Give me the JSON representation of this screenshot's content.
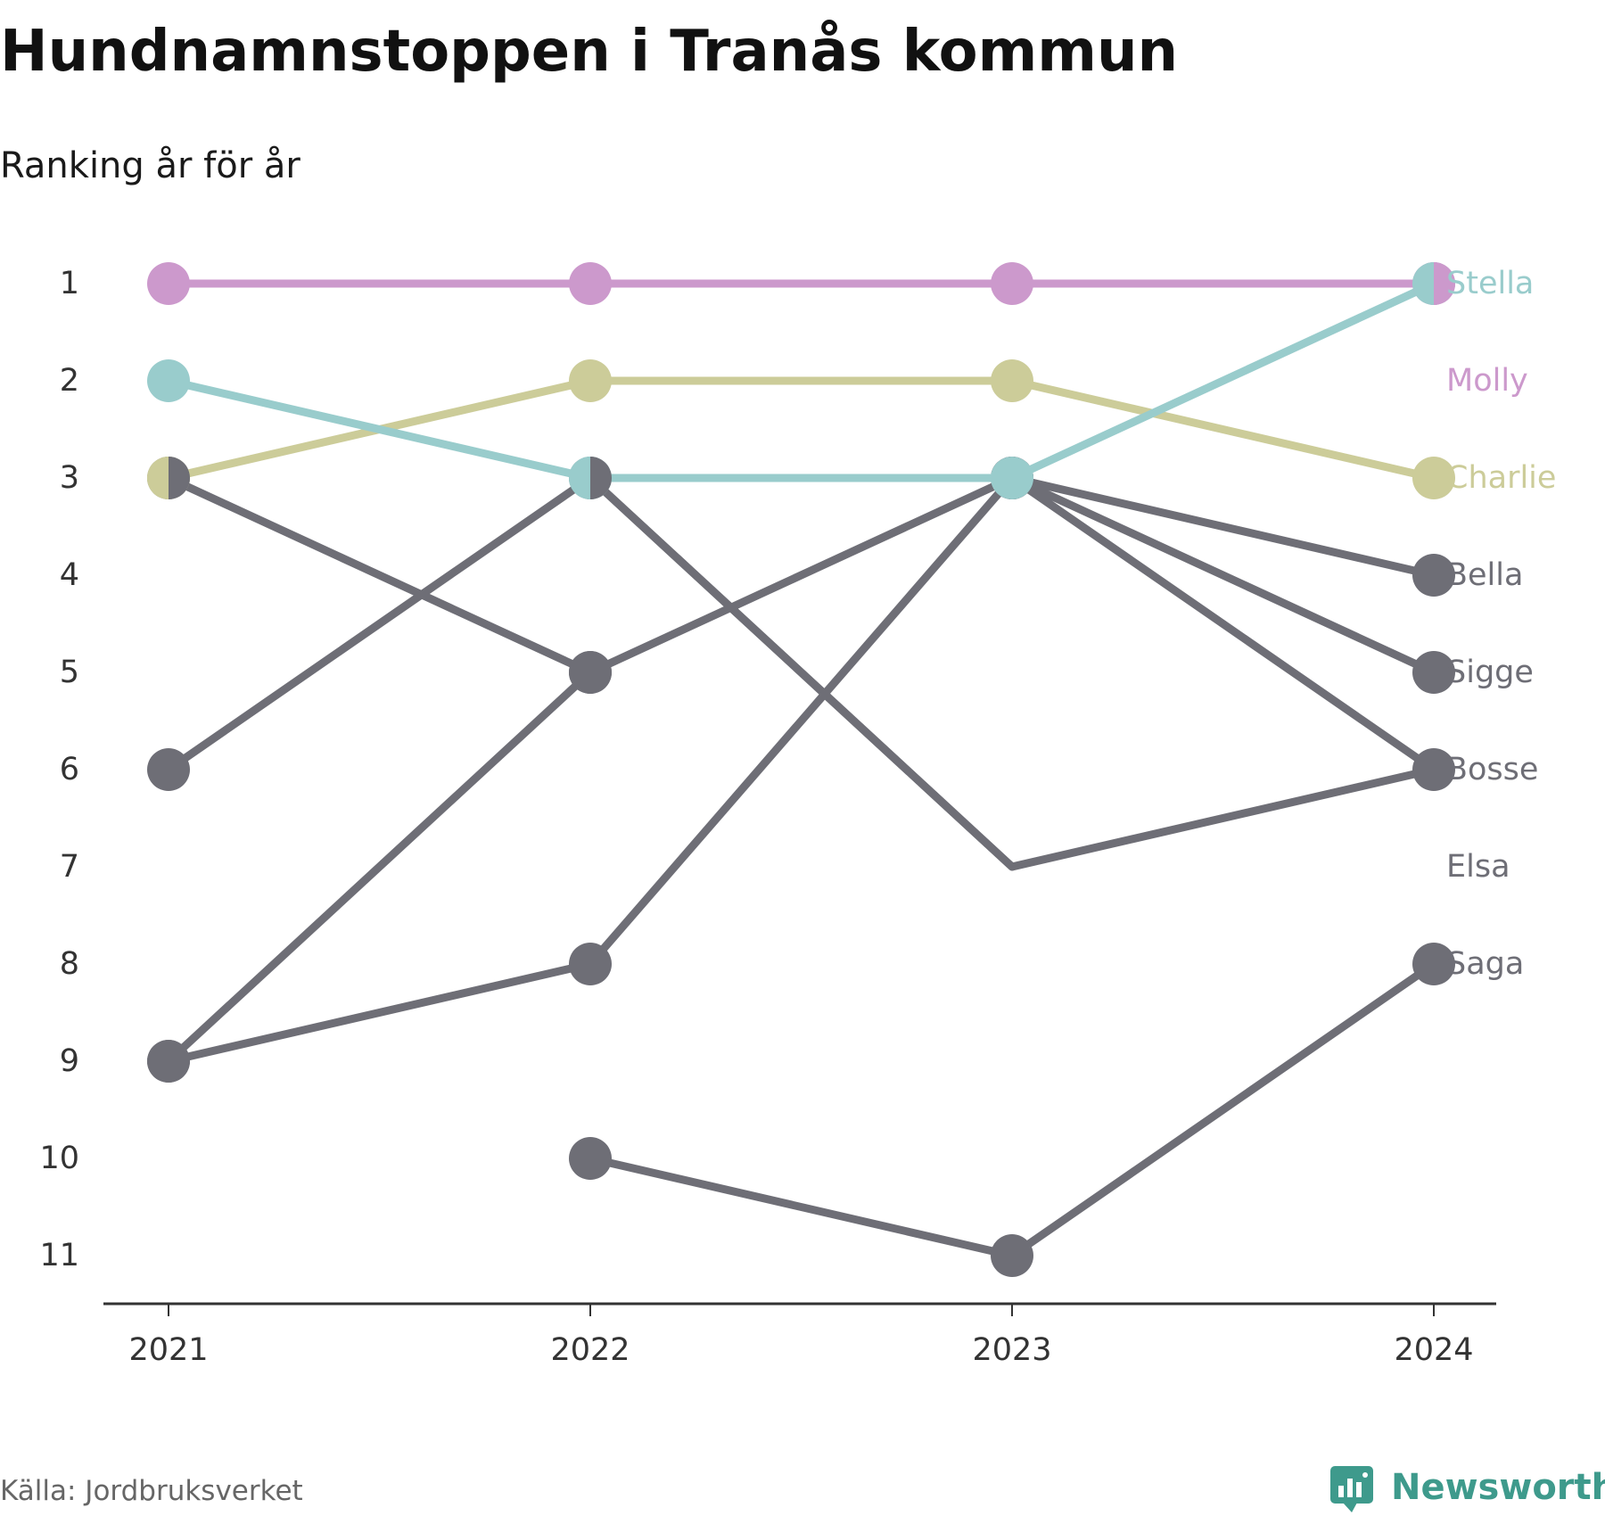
{
  "title": "Hundnamnstoppen i Tranås kommun",
  "subtitle": "Ranking år för år",
  "source": "Källa: Jordbruksverket",
  "brand": {
    "name": "Newsworthy",
    "color": "#3e9a8c",
    "icon": "bar-chart-bubble-icon"
  },
  "colors": {
    "molly": "#cc99cc",
    "stella": "#99cccc",
    "charlie": "#cccc99",
    "other": "#6e6e76",
    "axis": "#333333"
  },
  "chart_data": {
    "type": "line",
    "x": [
      "2021",
      "2022",
      "2023",
      "2024"
    ],
    "y_ticks": [
      1,
      2,
      3,
      4,
      5,
      6,
      7,
      8,
      9,
      10,
      11
    ],
    "ylim": [
      11,
      1
    ],
    "y_reversed": true,
    "grid": false,
    "legend": "direct labels at right end",
    "series": [
      {
        "name": "Bella",
        "color_key": "other",
        "values": [
          6,
          3,
          3,
          4
        ]
      },
      {
        "name": "Sigge",
        "color_key": "other",
        "values": [
          9,
          5,
          3,
          5
        ]
      },
      {
        "name": "Bosse",
        "color_key": "other",
        "values": [
          9,
          8,
          3,
          6
        ]
      },
      {
        "name": "Elsa",
        "color_key": "other",
        "values": [
          3,
          5,
          null,
          null
        ]
      },
      {
        "name": "Saga",
        "color_key": "other",
        "values": [
          null,
          10,
          11,
          8
        ]
      },
      {
        "name": "Charlie",
        "color_key": "charlie",
        "values": [
          3,
          2,
          2,
          3
        ]
      },
      {
        "name": "Stella",
        "color_key": "stella",
        "values": [
          2,
          3,
          3,
          1
        ]
      },
      {
        "name": "Molly",
        "color_key": "molly",
        "values": [
          1,
          1,
          1,
          1
        ]
      }
    ],
    "extra_segments": [
      {
        "color_key": "other",
        "values": [
          null,
          3,
          7,
          6
        ]
      },
      {
        "color_key": "other",
        "values": [
          null,
          3,
          7,
          null
        ]
      }
    ]
  }
}
